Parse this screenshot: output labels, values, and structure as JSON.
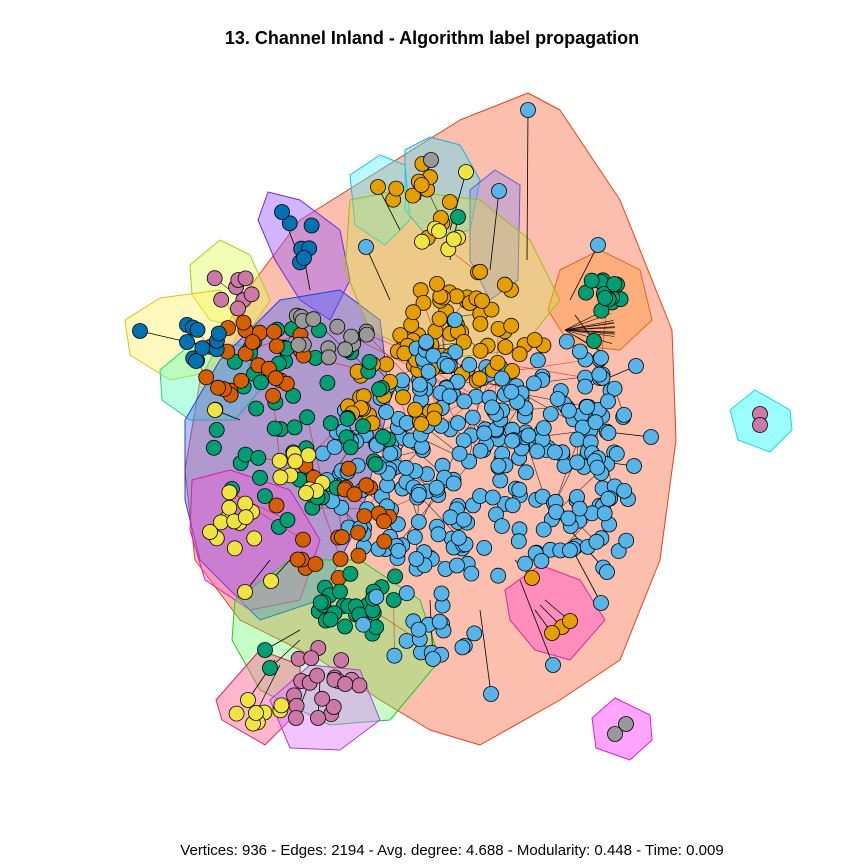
{
  "title": "13. Channel Inland - Algorithm label propagation",
  "footer": "Vertices: 936 - Edges: 2194 - Avg. degree: 4.688 - Modularity: 0.448 - Time: 0.009",
  "colors": {
    "sky": "#56b4e9",
    "orange": "#e69f00",
    "green": "#009e73",
    "yellow": "#f0e442",
    "blue": "#0072b2",
    "vermillion": "#d55e00",
    "pink": "#cc79a7",
    "gray": "#999999",
    "edge": "#000000",
    "interEdge": "#cc0000"
  }
}
